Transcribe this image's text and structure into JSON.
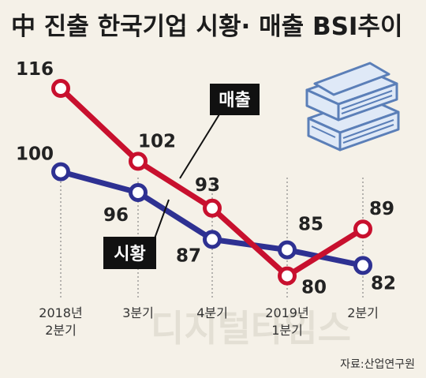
{
  "title": "中 진출 한국기업 시황· 매출  BSI추이",
  "source": "자료:산업연구원",
  "watermark": "디지털타임스",
  "colors": {
    "sales": "#c8102e",
    "market": "#2e3192",
    "background": "#f5f1e8"
  },
  "chart_data": {
    "type": "line",
    "categories": [
      [
        "2018년",
        "2분기"
      ],
      [
        "3분기"
      ],
      [
        "4분기"
      ],
      [
        "2019년",
        "1분기"
      ],
      [
        "2분기"
      ]
    ],
    "series": [
      {
        "name": "매출",
        "values": [
          116,
          102,
          93,
          80,
          89
        ]
      },
      {
        "name": "시황",
        "values": [
          100,
          96,
          87,
          85,
          82
        ]
      }
    ],
    "ylim": [
      75,
      120
    ],
    "grid": false,
    "legend": "direct labels"
  }
}
